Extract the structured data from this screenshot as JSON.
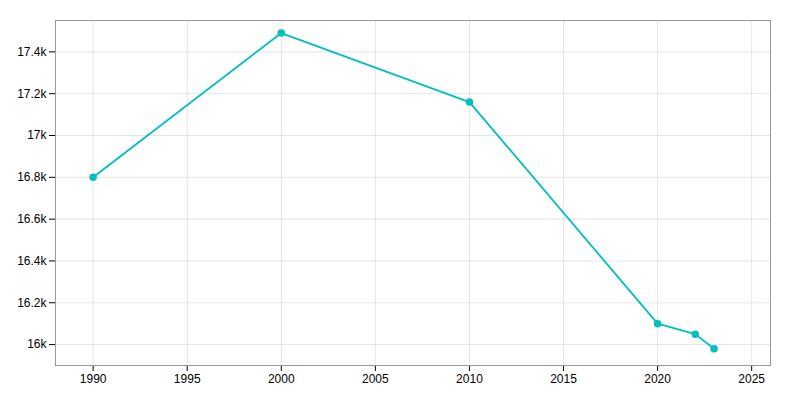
{
  "chart_data": {
    "type": "line",
    "x": [
      1990,
      2000,
      2010,
      2020,
      2022,
      2023
    ],
    "values": [
      16800,
      17490,
      17160,
      16100,
      16050,
      15980
    ],
    "color": "#00BFBF",
    "marker": "circle",
    "xlim": [
      1988,
      2026
    ],
    "xticks": [
      1990,
      1995,
      2000,
      2005,
      2010,
      2015,
      2020,
      2025
    ],
    "ylim": [
      15900,
      17550
    ],
    "yticks": [
      {
        "value": 16000,
        "label": "16k"
      },
      {
        "value": 16200,
        "label": "16.2k"
      },
      {
        "value": 16400,
        "label": "16.4k"
      },
      {
        "value": 16600,
        "label": "16.6k"
      },
      {
        "value": 16800,
        "label": "16.8k"
      },
      {
        "value": 17000,
        "label": "17k"
      },
      {
        "value": 17200,
        "label": "17.2k"
      },
      {
        "value": 17400,
        "label": "17.4k"
      }
    ],
    "grid": true
  }
}
